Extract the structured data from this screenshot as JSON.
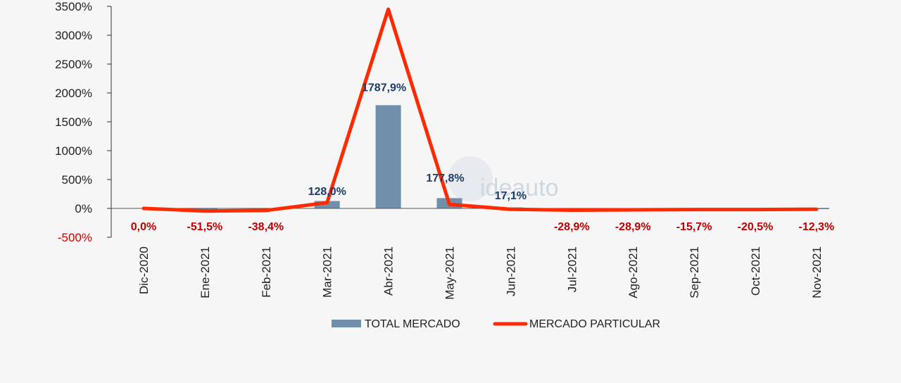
{
  "chart_data": {
    "type": "bar+line",
    "categories": [
      "Dic-2020",
      "Ene-2021",
      "Feb-2021",
      "Mar-2021",
      "Abr-2021",
      "May-2021",
      "Jun-2021",
      "Jul-2021",
      "Ago-2021",
      "Sep-2021",
      "Oct-2021",
      "Nov-2021"
    ],
    "ylim": [
      -500,
      3500
    ],
    "yticks": [
      3500,
      3000,
      2500,
      2000,
      1500,
      1000,
      500,
      0,
      -500
    ],
    "ytick_labels": [
      "3500%",
      "3000%",
      "2500%",
      "2000%",
      "1500%",
      "1000%",
      "500%",
      "0%",
      "-500%"
    ],
    "series": [
      {
        "name": "TOTAL MERCADO",
        "type": "bar",
        "color": "#6f8fab",
        "values": [
          0,
          -51.5,
          -38.4,
          128.0,
          1787.9,
          177.8,
          17.1,
          -28.9,
          -28.9,
          -15.7,
          -20.5,
          -12.3
        ],
        "labels": [
          "0,0%",
          "-51,5%",
          "-38,4%",
          "128,0%",
          "1787,9%",
          "177,8%",
          "17,1%",
          "-28,9%",
          "-28,9%",
          "-15,7%",
          "-20,5%",
          "-12,3%"
        ]
      },
      {
        "name": "MERCADO PARTICULAR",
        "type": "line",
        "color": "#ff2a00",
        "values": [
          0,
          -45,
          -35,
          100,
          3450,
          70,
          -15,
          -30,
          -25,
          -20,
          -20,
          -15
        ]
      }
    ],
    "legend": "bottom",
    "watermark": "ideauto"
  }
}
